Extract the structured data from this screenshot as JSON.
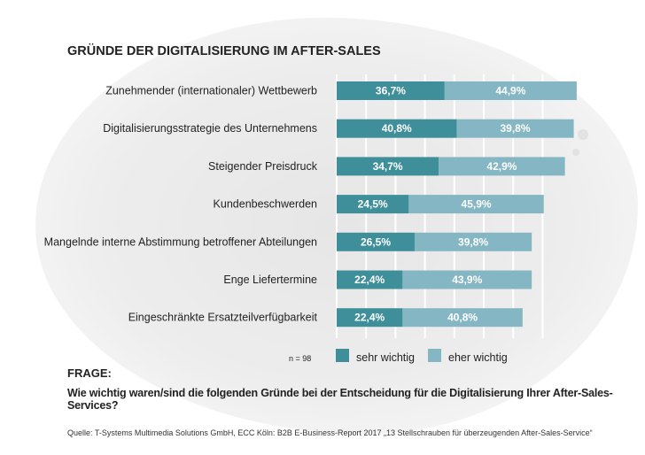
{
  "chart_data": {
    "type": "bar",
    "stacked": true,
    "orientation": "horizontal",
    "title": "GRÜNDE DER DIGITALISIERUNG IM AFTER-SALES",
    "categories": [
      "Zunehmender (internationaler) Wettbewerb",
      "Digitalisierungsstrategie des Unternehmens",
      "Steigender Preisdruck",
      "Kundenbeschwerden",
      "Mangelnde interne Abstimmung betroffener Abteilungen",
      "Enge Liefertermine",
      "Eingeschränkte Ersatzteilverfügbarkeit"
    ],
    "series": [
      {
        "name": "sehr wichtig",
        "color": "#3f8f9b",
        "values": [
          36.7,
          40.8,
          34.7,
          24.5,
          26.5,
          22.4,
          22.4
        ],
        "labels": [
          "36,7%",
          "40,8%",
          "34,7%",
          "24,5%",
          "26,5%",
          "22,4%",
          "22,4%"
        ]
      },
      {
        "name": "eher wichtig",
        "color": "#84b7c3",
        "values": [
          44.9,
          39.8,
          42.9,
          45.9,
          39.8,
          43.9,
          40.8
        ],
        "labels": [
          "44,9%",
          "39,8%",
          "42,9%",
          "45,9%",
          "39,8%",
          "43,9%",
          "40,8%"
        ]
      }
    ],
    "xlim": [
      0,
      85
    ],
    "grid": true,
    "legend": "bottom-right",
    "sample": "n = 98"
  },
  "question_heading": "FRAGE:",
  "question": "Wie wichtig waren/sind die folgenden Gründe bei der Entscheidung für die Digitalisierung Ihrer After-Sales-Services?",
  "source": "Quelle: T-Systems Multimedia Solutions GmbH, ECC Köln: B2B E-Business-Report 2017 „13 Stellschrauben für überzeugenden After-Sales-Service“"
}
